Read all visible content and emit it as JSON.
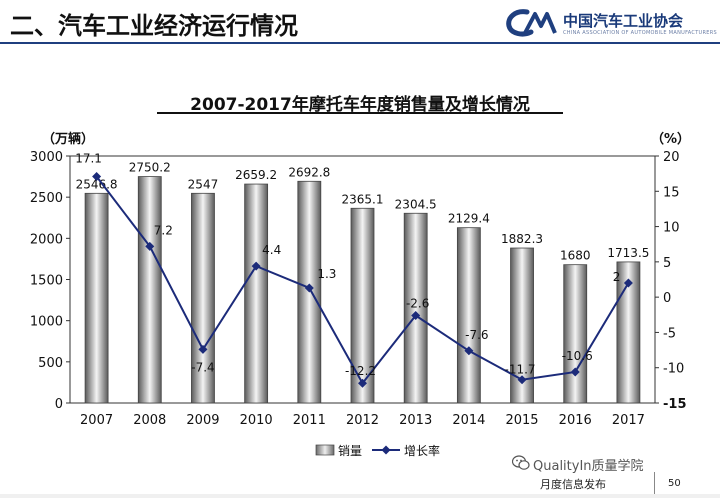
{
  "header": {
    "title": "二、汽车工业经济运行情况",
    "logo_cn": "中国汽车工业协会",
    "logo_en": "CHINA ASSOCIATION OF AUTOMOBILE MANUFACTURERS"
  },
  "colors": {
    "brand_blue": "#1f3f7f",
    "line": "#1c2b7a",
    "bar_dark": "#5a5a5a",
    "bar_light": "#f4f4f4"
  },
  "chart_data": {
    "type": "bar+line",
    "title": "2007-2017年摩托车年度销售量及增长情况",
    "categories": [
      "2007",
      "2008",
      "2009",
      "2010",
      "2011",
      "2012",
      "2013",
      "2014",
      "2015",
      "2016",
      "2017"
    ],
    "series": [
      {
        "name": "销量",
        "type": "bar",
        "axis": "left",
        "values": [
          2546.8,
          2750.2,
          2547,
          2659.2,
          2692.8,
          2365.1,
          2304.5,
          2129.4,
          1882.3,
          1680,
          1713.5
        ],
        "labels": [
          "2546.8",
          "2750.2",
          "2547",
          "2659.2",
          "2692.8",
          "2365.1",
          "2304.5",
          "2129.4",
          "1882.3",
          "1680",
          "1713.5"
        ]
      },
      {
        "name": "增长率",
        "type": "line",
        "axis": "right",
        "values": [
          17.1,
          7.2,
          -7.4,
          4.4,
          1.3,
          -12.2,
          -2.6,
          -7.6,
          -11.7,
          -10.6,
          2
        ],
        "labels": [
          "17.1",
          "7.2",
          "-7.4",
          "4.4",
          "1.3",
          "-12.2",
          "-2.6",
          "-7.6",
          "-11.7",
          "-10.6",
          "2"
        ]
      }
    ],
    "y_left": {
      "label": "（万辆）",
      "range": [
        0,
        3000
      ],
      "ticks": [
        "0",
        "500",
        "1000",
        "1500",
        "2000",
        "2500",
        "3000"
      ]
    },
    "y_right": {
      "label": "（%）",
      "range": [
        -15,
        20
      ],
      "ticks": [
        "-15",
        "-10",
        "-5",
        "0",
        "5",
        "10",
        "15",
        "20"
      ]
    },
    "legend": [
      "销量",
      "增长率"
    ],
    "legend_position": "bottom-center"
  },
  "footer": {
    "watermark": "QualityIn质量学院",
    "publication": "月度信息发布",
    "page": "50"
  }
}
